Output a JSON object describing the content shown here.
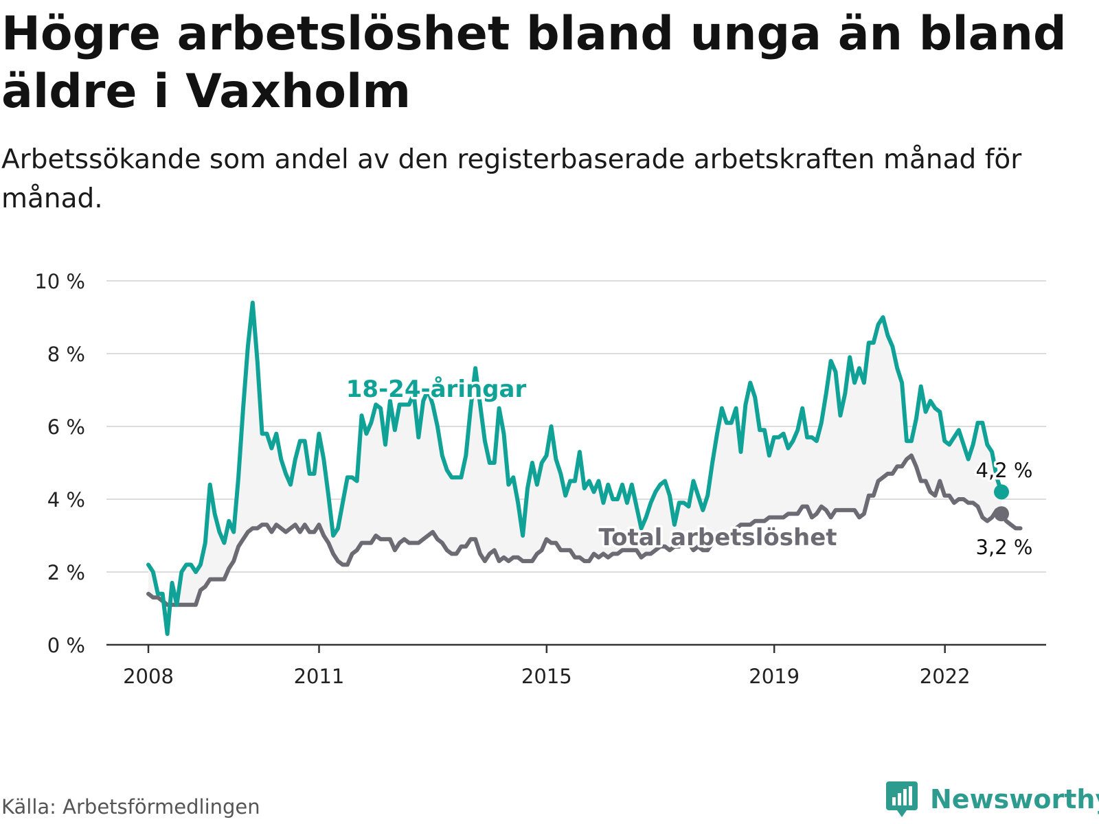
{
  "title": "Högre arbetslöshet bland unga än bland äldre i Vaxholm",
  "subtitle": "Arbetssökande som andel av den registerbaserade arbetskraften månad för månad.",
  "source": "Källa: Arbetsförmedlingen",
  "brand": "Newsworthy",
  "colors": {
    "youth": "#10a197",
    "total": "#6c6a73",
    "band": "#f4f4f4",
    "grid": "#dddddd",
    "axis": "#333333"
  },
  "chart_data": {
    "type": "line",
    "title": "Högre arbetslöshet bland unga än bland äldre i Vaxholm",
    "ylabel": "",
    "xlabel": "",
    "ylim": [
      0,
      10
    ],
    "xlim": [
      2007.3,
      2023.7
    ],
    "yticks": [
      0,
      2,
      4,
      6,
      8,
      10
    ],
    "ytick_labels": [
      "0 %",
      "2 %",
      "4 %",
      "6 %",
      "8 %",
      "10 %"
    ],
    "xticks": [
      2008,
      2011,
      2015,
      2019,
      2022
    ],
    "xtick_labels": [
      "2008",
      "2011",
      "2015",
      "2019",
      "2022"
    ],
    "x_start": 2008.0,
    "x_step": 0.0833,
    "series": [
      {
        "name": "18-24-åringar",
        "label": "18-24-åringar",
        "end_label": "4,2 %",
        "values": [
          2.2,
          2.0,
          1.4,
          1.4,
          0.3,
          1.7,
          1.1,
          2.0,
          2.2,
          2.2,
          2.0,
          2.2,
          2.8,
          4.4,
          3.6,
          3.1,
          2.8,
          3.4,
          3.1,
          4.6,
          6.5,
          8.2,
          9.4,
          7.8,
          5.8,
          5.8,
          5.4,
          5.8,
          5.1,
          4.7,
          4.4,
          5.1,
          5.6,
          5.6,
          4.7,
          4.7,
          5.8,
          5.1,
          4.1,
          3.0,
          3.2,
          3.9,
          4.6,
          4.6,
          4.5,
          6.3,
          5.8,
          6.1,
          6.6,
          6.5,
          5.5,
          6.7,
          5.9,
          6.6,
          6.6,
          6.6,
          6.9,
          5.7,
          6.7,
          7.0,
          6.6,
          6.0,
          5.2,
          4.8,
          4.6,
          4.6,
          4.6,
          5.2,
          6.5,
          7.6,
          6.6,
          5.6,
          5.0,
          5.0,
          6.5,
          5.8,
          4.4,
          4.6,
          3.9,
          3.0,
          4.3,
          5.0,
          4.4,
          5.0,
          5.2,
          6.0,
          5.1,
          4.7,
          4.1,
          4.5,
          4.5,
          5.3,
          4.3,
          4.5,
          4.2,
          4.5,
          3.9,
          4.4,
          4.0,
          4.0,
          4.4,
          3.9,
          4.4,
          3.8,
          3.2,
          3.5,
          3.9,
          4.2,
          4.4,
          4.5,
          4.1,
          3.3,
          3.9,
          3.9,
          3.8,
          4.5,
          4.1,
          3.7,
          4.1,
          5.0,
          5.8,
          6.5,
          6.1,
          6.1,
          6.5,
          5.3,
          6.6,
          7.2,
          6.8,
          5.9,
          5.9,
          5.2,
          5.7,
          5.7,
          5.8,
          5.4,
          5.6,
          5.9,
          6.5,
          5.7,
          5.7,
          5.6,
          6.1,
          6.9,
          7.8,
          7.5,
          6.3,
          6.9,
          7.9,
          7.2,
          7.6,
          7.2,
          8.3,
          8.3,
          8.8,
          9.0,
          8.5,
          8.2,
          7.6,
          7.2,
          5.6,
          5.6,
          6.2,
          7.1,
          6.4,
          6.7,
          6.5,
          6.4,
          5.6,
          5.5,
          5.7,
          5.9,
          5.5,
          5.1,
          5.5,
          6.1,
          6.1,
          5.5,
          5.3,
          4.6,
          4.2
        ]
      },
      {
        "name": "Total arbetslöshet",
        "label": "Total arbetslöshet",
        "end_label": "3,2 %",
        "values": [
          1.4,
          1.3,
          1.3,
          1.2,
          1.1,
          1.1,
          1.1,
          1.1,
          1.1,
          1.1,
          1.1,
          1.5,
          1.6,
          1.8,
          1.8,
          1.8,
          1.8,
          2.1,
          2.3,
          2.7,
          2.9,
          3.1,
          3.2,
          3.2,
          3.3,
          3.3,
          3.1,
          3.3,
          3.2,
          3.1,
          3.2,
          3.3,
          3.1,
          3.3,
          3.1,
          3.1,
          3.3,
          3.0,
          2.8,
          2.5,
          2.3,
          2.2,
          2.2,
          2.5,
          2.6,
          2.8,
          2.8,
          2.8,
          3.0,
          2.9,
          2.9,
          2.9,
          2.6,
          2.8,
          2.9,
          2.8,
          2.8,
          2.8,
          2.9,
          3.0,
          3.1,
          2.9,
          2.8,
          2.6,
          2.5,
          2.5,
          2.7,
          2.7,
          2.9,
          2.9,
          2.5,
          2.3,
          2.5,
          2.6,
          2.3,
          2.4,
          2.3,
          2.4,
          2.4,
          2.3,
          2.3,
          2.3,
          2.5,
          2.6,
          2.9,
          2.8,
          2.8,
          2.6,
          2.6,
          2.6,
          2.4,
          2.4,
          2.3,
          2.3,
          2.5,
          2.4,
          2.5,
          2.4,
          2.5,
          2.5,
          2.6,
          2.6,
          2.6,
          2.6,
          2.4,
          2.5,
          2.5,
          2.6,
          2.7,
          2.7,
          2.6,
          2.7,
          2.7,
          2.8,
          2.8,
          2.6,
          2.7,
          2.6,
          2.6,
          2.8,
          2.9,
          3.0,
          3.0,
          3.1,
          3.2,
          3.3,
          3.3,
          3.3,
          3.4,
          3.4,
          3.4,
          3.5,
          3.5,
          3.5,
          3.5,
          3.6,
          3.6,
          3.6,
          3.8,
          3.8,
          3.5,
          3.6,
          3.8,
          3.7,
          3.5,
          3.7,
          3.7,
          3.7,
          3.7,
          3.7,
          3.5,
          3.6,
          4.1,
          4.1,
          4.5,
          4.6,
          4.7,
          4.7,
          4.9,
          4.9,
          5.1,
          5.2,
          4.9,
          4.5,
          4.5,
          4.2,
          4.1,
          4.5,
          4.1,
          4.1,
          3.9,
          4.0,
          4.0,
          3.9,
          3.9,
          3.8,
          3.5,
          3.4,
          3.5,
          3.7,
          3.6,
          3.4,
          3.3,
          3.2,
          3.2
        ]
      }
    ],
    "annotations": [
      {
        "text": "18-24-åringar",
        "series": "18-24-åringar"
      },
      {
        "text": "Total arbetslöshet",
        "series": "Total arbetslöshet"
      }
    ]
  }
}
